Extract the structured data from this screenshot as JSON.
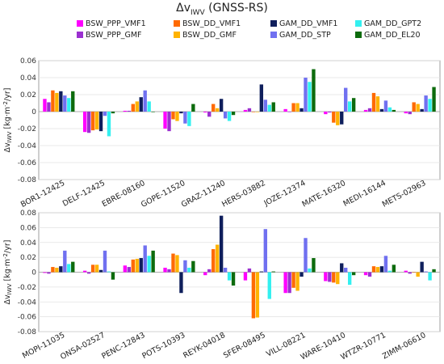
{
  "title_prefix": "Δv",
  "title_sub": "IWV",
  "title_suffix": " (GNSS-RS)",
  "chart_data": [
    {
      "type": "bar",
      "ylabel_prefix": "Δv",
      "ylabel_sub": "IWV",
      "ylabel_suffix": " [kg·m",
      "ylabel_sup": "-2",
      "ylabel_end": "/yr]",
      "ylim": [
        -0.08,
        0.06
      ],
      "yticks": [
        "0.06",
        "0.04",
        "0.02",
        "0",
        "-0.02",
        "-0.04",
        "-0.06",
        "-0.08"
      ],
      "ytick_values": [
        0.06,
        0.04,
        0.02,
        0,
        -0.02,
        -0.04,
        -0.06,
        -0.08
      ],
      "grid": true,
      "categories": [
        "BOR1-12425",
        "DELF-12425",
        "EBRE-08160",
        "GOPE-11520",
        "GRAZ-11240",
        "HERS-03882",
        "JOZE-12374",
        "MATE-16320",
        "MEDI-16144",
        "METS-02963"
      ],
      "series": [
        {
          "name": "BSW_PPP_VMF1",
          "values": [
            0.015,
            -0.024,
            0.001,
            -0.02,
            -0.001,
            0.002,
            0.003,
            -0.003,
            0.002,
            -0.002
          ]
        },
        {
          "name": "BSW_PPP_GMF",
          "values": [
            0.011,
            -0.025,
            0.001,
            -0.023,
            -0.006,
            0.004,
            0.0,
            -0.001,
            0.004,
            -0.003
          ]
        },
        {
          "name": "BSW_DD_VMF1",
          "values": [
            0.025,
            -0.022,
            0.009,
            -0.009,
            0.009,
            0.0,
            0.01,
            -0.013,
            0.022,
            0.011
          ]
        },
        {
          "name": "BSW_DD_GMF",
          "values": [
            0.022,
            -0.021,
            0.012,
            -0.011,
            0.004,
            0.0,
            0.01,
            -0.016,
            0.018,
            0.009
          ]
        },
        {
          "name": "GAM_DD_VMF1",
          "values": [
            0.024,
            -0.023,
            0.017,
            -0.002,
            0.015,
            0.032,
            0.004,
            -0.015,
            0.003,
            0.003
          ]
        },
        {
          "name": "GAM_DD_STP",
          "values": [
            0.019,
            -0.005,
            0.025,
            -0.014,
            -0.008,
            0.014,
            0.04,
            0.028,
            0.013,
            0.019
          ]
        },
        {
          "name": "GAM_DD_GPT2",
          "values": [
            0.016,
            -0.029,
            0.012,
            -0.017,
            -0.011,
            0.008,
            0.035,
            0.012,
            0.005,
            0.015
          ]
        },
        {
          "name": "GAM_DD_EL20",
          "values": [
            0.024,
            -0.002,
            0.0,
            0.009,
            -0.004,
            0.011,
            0.05,
            0.016,
            0.002,
            0.029
          ]
        }
      ]
    },
    {
      "type": "bar",
      "ylabel_prefix": "Δv",
      "ylabel_sub": "IWV",
      "ylabel_suffix": " [kg·m",
      "ylabel_sup": "-2",
      "ylabel_end": "/yr]",
      "ylim": [
        -0.08,
        0.08
      ],
      "yticks": [
        "0.08",
        "0.06",
        "0.04",
        "0.02",
        "0",
        "-0.02",
        "-0.04",
        "-0.06",
        "-0.08"
      ],
      "ytick_values": [
        0.08,
        0.06,
        0.04,
        0.02,
        0,
        -0.02,
        -0.04,
        -0.06,
        -0.08
      ],
      "grid": true,
      "categories": [
        "MOPI-11035",
        "ONSA-02527",
        "PENC-12843",
        "POTS-10393",
        "REYK-04018",
        "SFER-08495",
        "VILL-08221",
        "WARE-10410",
        "WTZR-10771",
        "ZIMM-06610"
      ],
      "series": [
        {
          "name": "BSW_PPP_VMF1",
          "values": [
            -0.001,
            0.002,
            0.009,
            0.006,
            -0.004,
            -0.011,
            -0.028,
            -0.012,
            -0.004,
            0.002
          ]
        },
        {
          "name": "BSW_PPP_GMF",
          "values": [
            -0.002,
            -0.002,
            0.007,
            0.004,
            0.004,
            0.005,
            -0.028,
            -0.013,
            -0.006,
            -0.002
          ]
        },
        {
          "name": "BSW_DD_VMF1",
          "values": [
            0.007,
            0.01,
            0.017,
            0.025,
            0.031,
            -0.062,
            -0.021,
            -0.014,
            0.008,
            0.0
          ]
        },
        {
          "name": "BSW_DD_GMF",
          "values": [
            0.006,
            0.01,
            0.018,
            0.023,
            0.037,
            -0.061,
            -0.025,
            -0.016,
            0.007,
            -0.006
          ]
        },
        {
          "name": "GAM_DD_VMF1",
          "values": [
            0.008,
            0.003,
            0.019,
            -0.028,
            0.076,
            0.001,
            -0.006,
            0.012,
            0.008,
            0.014
          ]
        },
        {
          "name": "GAM_DD_STP",
          "values": [
            0.029,
            0.029,
            0.036,
            0.016,
            0.006,
            0.058,
            0.046,
            0.006,
            0.022,
            0.001
          ]
        },
        {
          "name": "GAM_DD_GPT2",
          "values": [
            0.011,
            0.001,
            0.022,
            0.006,
            -0.011,
            -0.036,
            0.005,
            -0.017,
            0.002,
            -0.011
          ]
        },
        {
          "name": "GAM_DD_EL20",
          "values": [
            0.014,
            -0.01,
            0.029,
            0.015,
            -0.018,
            0.001,
            0.019,
            -0.004,
            0.01,
            0.004
          ]
        }
      ]
    }
  ],
  "colors": [
    "#ff00ff",
    "#9b30d0",
    "#ff6a00",
    "#ffb300",
    "#0f1f5c",
    "#7070f0",
    "#33f0f0",
    "#0d6b0d"
  ],
  "legend_order": [
    0,
    1,
    2,
    3,
    4,
    5,
    6,
    7
  ]
}
